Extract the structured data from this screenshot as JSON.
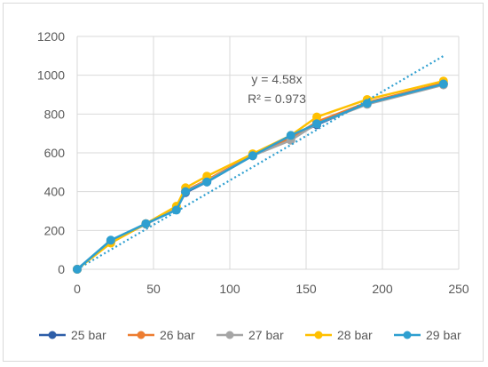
{
  "chart_data": {
    "type": "line",
    "title": "",
    "xlabel": "",
    "ylabel": "",
    "xlim": [
      0,
      250
    ],
    "ylim": [
      0,
      1200
    ],
    "x_ticks": [
      "0",
      "50",
      "100",
      "150",
      "200",
      "250"
    ],
    "y_ticks": [
      "0",
      "200",
      "400",
      "600",
      "800",
      "1000",
      "1200"
    ],
    "grid": true,
    "legend_position": "bottom",
    "series": [
      {
        "name": "25 bar",
        "color": "#2e5ea8",
        "x": [
          0,
          22,
          45,
          65,
          71,
          85,
          115,
          140,
          157,
          190,
          240
        ],
        "y": [
          0,
          145,
          235,
          310,
          395,
          450,
          585,
          680,
          745,
          855,
          955
        ]
      },
      {
        "name": "26 bar",
        "color": "#ed7d31",
        "x": [
          0,
          22,
          45,
          65,
          71,
          85,
          115,
          140,
          157,
          190,
          240
        ],
        "y": [
          0,
          140,
          235,
          315,
          405,
          460,
          590,
          675,
          760,
          860,
          960
        ]
      },
      {
        "name": "27 bar",
        "color": "#a5a5a5",
        "x": [
          0,
          22,
          45,
          65,
          71,
          85,
          115,
          140,
          157,
          190,
          240
        ],
        "y": [
          0,
          140,
          232,
          310,
          400,
          455,
          585,
          665,
          750,
          850,
          950
        ]
      },
      {
        "name": "28 bar",
        "color": "#ffc000",
        "x": [
          0,
          22,
          45,
          65,
          71,
          85,
          115,
          140,
          157,
          190,
          240
        ],
        "y": [
          0,
          135,
          235,
          325,
          420,
          480,
          595,
          690,
          785,
          875,
          970
        ]
      },
      {
        "name": "29 bar",
        "color": "#2e9fd0",
        "x": [
          0,
          22,
          45,
          65,
          71,
          85,
          115,
          140,
          157,
          190,
          240
        ],
        "y": [
          0,
          150,
          235,
          305,
          400,
          450,
          585,
          690,
          750,
          855,
          955
        ]
      }
    ],
    "trendline": {
      "slope": 4.58,
      "color": "#2e9fd0",
      "x_range": [
        0,
        240
      ]
    },
    "annotations": [
      {
        "text": "y = 4.58x"
      },
      {
        "text": "R² = 0.973"
      }
    ]
  }
}
